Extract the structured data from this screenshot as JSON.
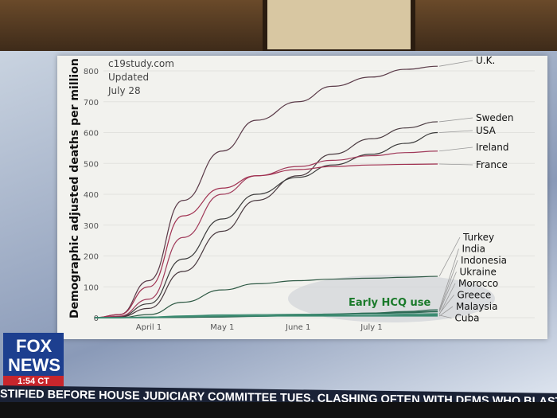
{
  "chart_data": {
    "type": "line",
    "title": "",
    "annotation_lines": [
      "c19study.com",
      "Updated",
      "July 28"
    ],
    "ylabel": "Demographic adjusted deaths per million",
    "xlabel": "",
    "ylim": [
      0,
      830
    ],
    "yticks": [
      0,
      100,
      200,
      300,
      400,
      500,
      600,
      700,
      800
    ],
    "xticks": [
      {
        "label": "April 1",
        "date": "2020-04-01"
      },
      {
        "label": "May 1",
        "date": "2020-05-01"
      },
      {
        "label": "June 1",
        "date": "2020-06-01"
      },
      {
        "label": "July 1",
        "date": "2020-07-01"
      }
    ],
    "x": [
      "2020-03-10",
      "2020-03-20",
      "2020-04-01",
      "2020-04-15",
      "2020-05-01",
      "2020-05-15",
      "2020-06-01",
      "2020-06-15",
      "2020-07-01",
      "2020-07-15",
      "2020-07-28"
    ],
    "series": [
      {
        "name": "U.K.",
        "color": "#5a3a48",
        "values": [
          0,
          10,
          120,
          380,
          540,
          640,
          700,
          750,
          780,
          805,
          815
        ]
      },
      {
        "name": "Sweden",
        "color": "#4a3a40",
        "values": [
          0,
          2,
          30,
          150,
          280,
          380,
          460,
          530,
          580,
          615,
          635
        ]
      },
      {
        "name": "USA",
        "color": "#3a3a3a",
        "values": [
          0,
          3,
          45,
          190,
          320,
          400,
          455,
          495,
          530,
          565,
          600
        ]
      },
      {
        "name": "Ireland",
        "color": "#a03a5a",
        "values": [
          0,
          5,
          60,
          260,
          400,
          460,
          490,
          510,
          525,
          535,
          540
        ]
      },
      {
        "name": "France",
        "color": "#a03050",
        "values": [
          0,
          10,
          100,
          330,
          420,
          460,
          480,
          490,
          495,
          497,
          498
        ]
      },
      {
        "name": "Turkey",
        "color": "#2f5a45",
        "values": [
          0,
          0,
          10,
          50,
          90,
          110,
          120,
          125,
          128,
          131,
          134
        ]
      },
      {
        "name": "India",
        "color": "#2f6a55",
        "values": [
          0,
          0,
          0,
          1,
          2,
          4,
          7,
          11,
          15,
          20,
          26
        ]
      },
      {
        "name": "Indonesia",
        "color": "#2f6a55",
        "values": [
          0,
          0,
          1,
          2,
          4,
          6,
          9,
          12,
          15,
          18,
          21
        ]
      },
      {
        "name": "Ukraine",
        "color": "#2f6a55",
        "values": [
          0,
          0,
          0,
          1,
          3,
          5,
          8,
          10,
          13,
          16,
          19
        ]
      },
      {
        "name": "Morocco",
        "color": "#3a8a70",
        "values": [
          0,
          0,
          1,
          3,
          5,
          6,
          6,
          7,
          7,
          8,
          10
        ]
      },
      {
        "name": "Greece",
        "color": "#3a8a70",
        "values": [
          0,
          0,
          2,
          6,
          9,
          10,
          11,
          11,
          12,
          12,
          13
        ]
      },
      {
        "name": "Malaysia",
        "color": "#3a8a70",
        "values": [
          0,
          0,
          2,
          4,
          5,
          5,
          5,
          5,
          5,
          5,
          5
        ]
      },
      {
        "name": "Cuba",
        "color": "#3a8a70",
        "values": [
          0,
          0,
          1,
          4,
          6,
          7,
          7,
          7,
          7,
          8,
          8
        ]
      }
    ],
    "region_label": "Early HCQ use",
    "region_label_color": "#1a7a2a",
    "grid": true
  },
  "broadcast": {
    "logo": [
      "FOX",
      "NEWS"
    ],
    "time": "1:54 CT",
    "ticker": "STIFIED BEFORE HOUSE JUDICIARY COMMITTEE TUES,  CLASHING OFTEN WITH DEMS WHO BLASTED GO"
  }
}
